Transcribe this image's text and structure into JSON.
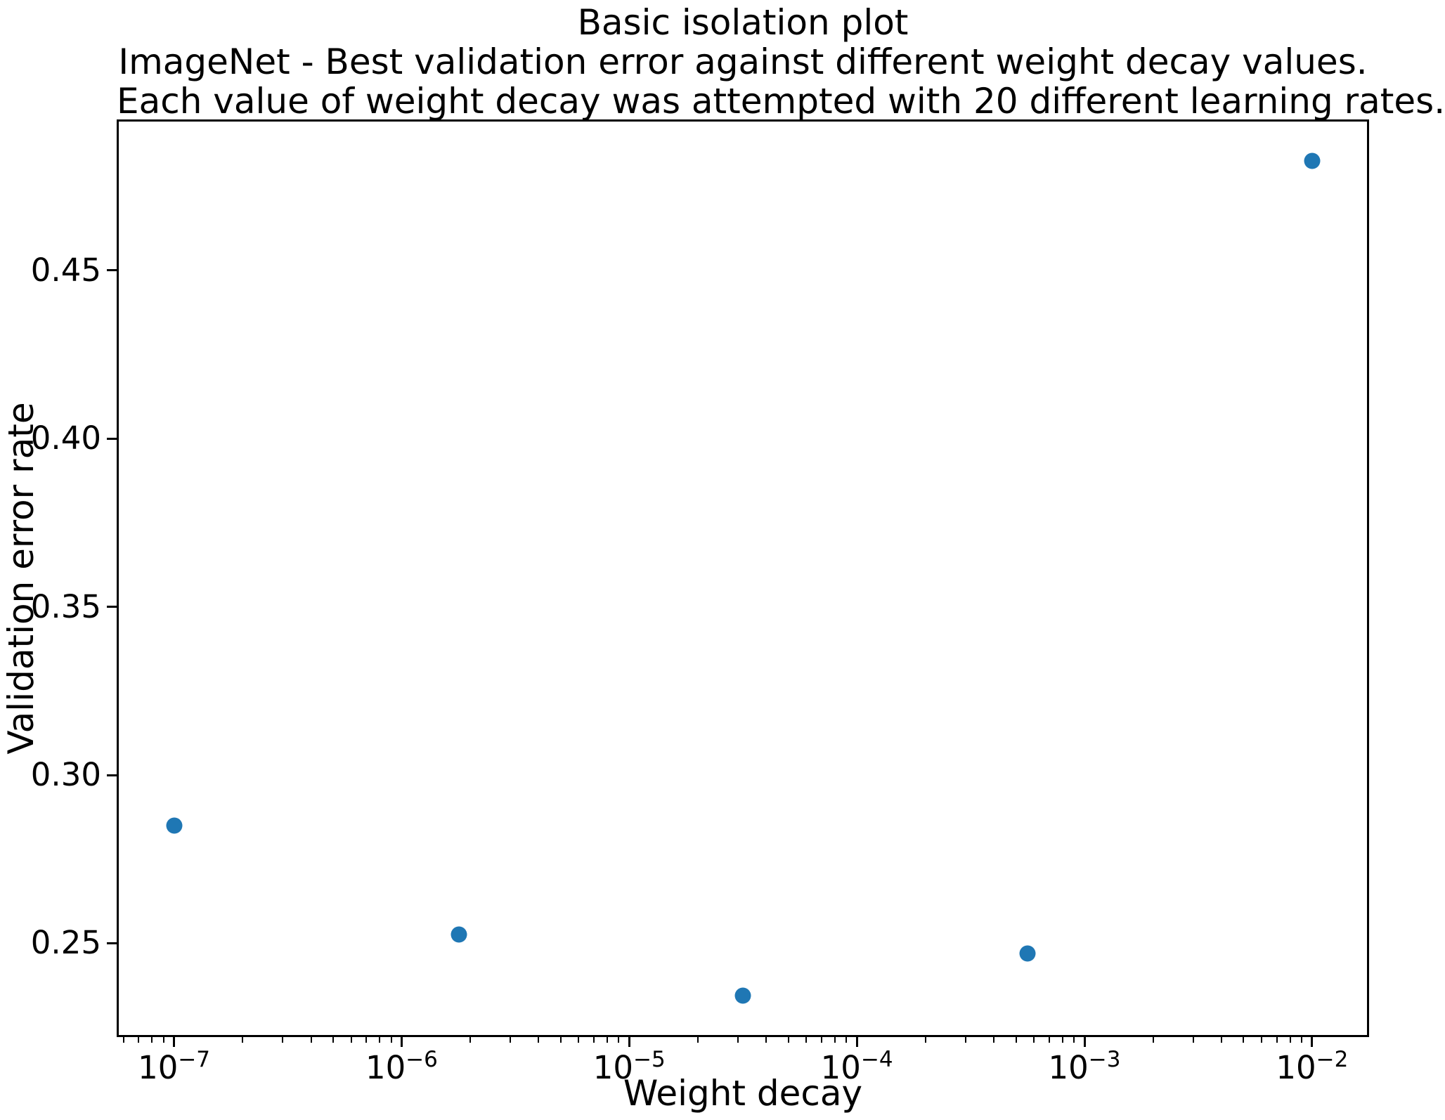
{
  "title": {
    "line1": "Basic isolation plot",
    "line2": "ImageNet - Best validation error against different weight decay values.",
    "line3": "Each value of weight decay was attempted with 20 different learning rates."
  },
  "chart_data": {
    "type": "scatter",
    "title": "Basic isolation plot\nImageNet - Best validation error against different weight decay values.\nEach value of weight decay was attempted with 20 different learning rates.",
    "xlabel": "Weight decay",
    "ylabel": "Validation error rate",
    "xscale": "log",
    "yscale": "linear",
    "grid": false,
    "legend": null,
    "x": [
      1e-07,
      1.78e-06,
      3.16e-05,
      0.000562,
      0.01
    ],
    "y": [
      0.285,
      0.2525,
      0.2345,
      0.247,
      0.4825
    ],
    "xlim": [
      5.6e-08,
      0.0178
    ],
    "ylim": [
      0.2221,
      0.4949
    ],
    "x_major_ticks": [
      1e-07,
      1e-06,
      1e-05,
      0.0001,
      0.001,
      0.01
    ],
    "x_tick_base": "10",
    "x_tick_exponents": [
      "−7",
      "−6",
      "−5",
      "−4",
      "−3",
      "−2"
    ],
    "x_tick_labels": [
      "10⁻⁷",
      "10⁻⁶",
      "10⁻⁵",
      "10⁻⁴",
      "10⁻³",
      "10⁻²"
    ],
    "y_ticks": [
      "0.25",
      "0.30",
      "0.35",
      "0.40",
      "0.45"
    ],
    "marker_color": "#1f77b4"
  },
  "colors": {
    "background": "#ffffff",
    "text": "#000000",
    "spine": "#000000",
    "marker": "#1f77b4"
  }
}
